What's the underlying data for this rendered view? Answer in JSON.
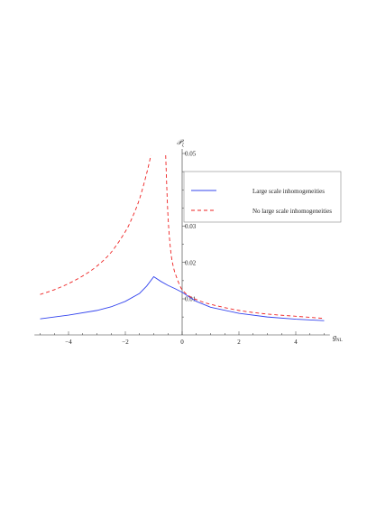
{
  "chart_data": {
    "type": "line",
    "title": "",
    "xlabel": "g_NL",
    "xlabel_main": "g",
    "xlabel_sub": "NL",
    "ylabel": "𝒫_ζ",
    "ylabel_main": "𝒫",
    "ylabel_sub": "ζ",
    "xlim": [
      -5.2,
      5.2
    ],
    "ylim": [
      0.0025,
      0.05
    ],
    "x_ticks": [
      -4,
      -2,
      0,
      2,
      4
    ],
    "x_tick_labels": [
      "−4",
      "−2",
      "0",
      "2",
      "4"
    ],
    "y_ticks": [
      0.01,
      0.02,
      0.03,
      0.04,
      0.05
    ],
    "y_tick_labels": [
      "0.01",
      "0.02",
      "0.03",
      "0.04",
      "0.05"
    ],
    "grid": false,
    "legend_position": "right",
    "colors": {
      "blue": "#3344ee",
      "red": "#ee2222"
    },
    "series": [
      {
        "name": "Large scale inhomogeneities",
        "style": "solid",
        "color": "#3344ee",
        "x": [
          -5,
          -4,
          -3,
          -2.5,
          -2,
          -1.5,
          -1.25,
          -1,
          -0.75,
          -0.5,
          -0.25,
          0,
          0.25,
          0.5,
          1,
          2,
          3,
          4,
          5
        ],
        "y": [
          0.0045,
          0.0055,
          0.0068,
          0.0078,
          0.0093,
          0.0115,
          0.0135,
          0.0161,
          0.0148,
          0.0137,
          0.0128,
          0.0118,
          0.0105,
          0.0093,
          0.0077,
          0.006,
          0.005,
          0.0044,
          0.004
        ]
      },
      {
        "name": "No large scale inhomogeneities",
        "style": "dashed",
        "color": "#ee2222",
        "segments": [
          {
            "x": [
              -5,
              -4.5,
              -4,
              -3.5,
              -3,
              -2.5,
              -2,
              -1.75,
              -1.5,
              -1.25,
              -1.1
            ],
            "y": [
              0.0112,
              0.0125,
              0.0142,
              0.0163,
              0.019,
              0.0228,
              0.0285,
              0.0325,
              0.0375,
              0.0445,
              0.0495
            ]
          },
          {
            "x": [
              -0.58,
              -0.5,
              -0.4,
              -0.3,
              -0.2,
              -0.1,
              0,
              0.2,
              0.5,
              1,
              2,
              3,
              4,
              5
            ],
            "y": [
              0.0495,
              0.033,
              0.023,
              0.0185,
              0.016,
              0.014,
              0.0125,
              0.011,
              0.0098,
              0.0085,
              0.0068,
              0.0058,
              0.0052,
              0.0046
            ]
          }
        ]
      }
    ]
  }
}
